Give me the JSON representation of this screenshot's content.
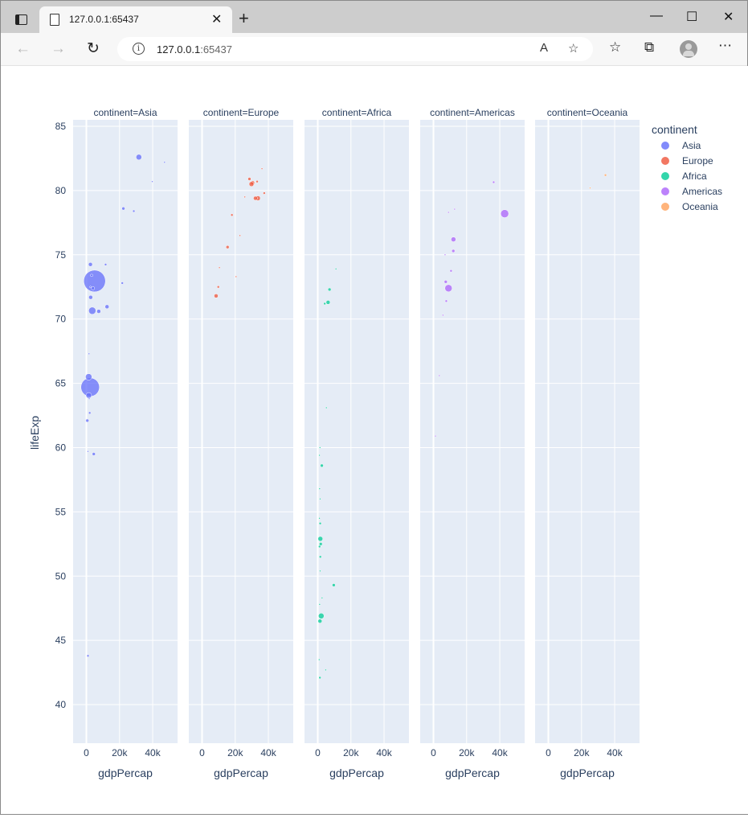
{
  "browser": {
    "tab_title": "127.0.0.1:65437",
    "url_host": "127.0.0.1",
    "url_port": ":65437",
    "tab_close_icon": "close-icon",
    "new_tab_icon": "plus-icon"
  },
  "chart_data": {
    "type": "scatter",
    "facet_by": "continent",
    "facets": [
      "continent=Asia",
      "continent=Europe",
      "continent=Africa",
      "continent=Americas",
      "continent=Oceania"
    ],
    "xlabel": "gdpPercap",
    "ylabel": "lifeExp",
    "xlim": [
      -8000,
      55000
    ],
    "ylim": [
      37,
      85.5
    ],
    "xticks": [
      0,
      20000,
      40000
    ],
    "xtick_labels": [
      "0",
      "20k",
      "40k"
    ],
    "yticks": [
      40,
      45,
      50,
      55,
      60,
      65,
      70,
      75,
      80,
      85
    ],
    "ytick_labels": [
      "40",
      "45",
      "50",
      "55",
      "60",
      "65",
      "70",
      "75",
      "80",
      "85"
    ],
    "legend_title": "continent",
    "legend_position": "right",
    "grid": true,
    "size_encoded": true,
    "colors": {
      "Asia": "#636efa",
      "Europe": "#ef553b",
      "Africa": "#00cc96",
      "Americas": "#ab63fa",
      "Oceania": "#ffa15a",
      "plot_bg": "#e5ecf6"
    },
    "series": [
      {
        "name": "Asia",
        "points": [
          [
            31656,
            82.6,
            7
          ],
          [
            47143,
            82.2,
            2
          ],
          [
            39725,
            80.7,
            2
          ],
          [
            22316,
            78.6,
            4
          ],
          [
            28604,
            78.4,
            3
          ],
          [
            4959,
            72.96,
            27
          ],
          [
            2452,
            74.25,
            5
          ],
          [
            11606,
            74.24,
            3
          ],
          [
            3190,
            73.4,
            3
          ],
          [
            3970,
            72.4,
            4
          ],
          [
            21655,
            72.8,
            3
          ],
          [
            2442,
            72.5,
            2
          ],
          [
            3548,
            70.65,
            9
          ],
          [
            7458,
            70.6,
            5
          ],
          [
            12452,
            70.96,
            5
          ],
          [
            2605,
            71.69,
            5
          ],
          [
            2281,
            64.7,
            23
          ],
          [
            1391,
            65.5,
            8
          ],
          [
            1441,
            64.06,
            7
          ],
          [
            1714,
            63.8,
            2
          ],
          [
            1593,
            67.3,
            2
          ],
          [
            580,
            62.1,
            4
          ],
          [
            2012,
            62.7,
            3
          ],
          [
            944,
            59.7,
            2
          ],
          [
            4471,
            59.5,
            4
          ],
          [
            975,
            43.8,
            3
          ]
        ]
      },
      {
        "name": "Europe",
        "points": [
          [
            28569,
            80.9,
            4
          ],
          [
            33207,
            80.7,
            3
          ],
          [
            30470,
            80.6,
            5
          ],
          [
            36126,
            81.7,
            2
          ],
          [
            29796,
            80.5,
            6
          ],
          [
            33693,
            79.4,
            6
          ],
          [
            32170,
            79.4,
            5
          ],
          [
            37506,
            79.8,
            3
          ],
          [
            25768,
            79.5,
            2
          ],
          [
            18008,
            78.1,
            3
          ],
          [
            15390,
            75.6,
            4
          ],
          [
            22833,
            76.5,
            2
          ],
          [
            20510,
            73.3,
            2
          ],
          [
            9787,
            72.5,
            3
          ],
          [
            10461,
            74.0,
            2
          ],
          [
            8458,
            71.8,
            5
          ]
        ]
      },
      {
        "name": "Africa",
        "points": [
          [
            7092,
            72.3,
            4
          ],
          [
            6224,
            71.3,
            5
          ],
          [
            4185,
            71.2,
            3
          ],
          [
            10957,
            73.9,
            2
          ],
          [
            5186,
            63.1,
            2
          ],
          [
            1328,
            60.0,
            2
          ],
          [
            1000,
            59.4,
            2
          ],
          [
            2452,
            58.6,
            4
          ],
          [
            1107,
            56.8,
            2
          ],
          [
            1441,
            56.0,
            2
          ],
          [
            1000,
            54.5,
            2
          ],
          [
            1463,
            54.1,
            3
          ],
          [
            1570,
            52.9,
            6
          ],
          [
            1803,
            52.5,
            4
          ],
          [
            1100,
            52.3,
            3
          ],
          [
            1545,
            51.5,
            3
          ],
          [
            1441,
            50.4,
            2
          ],
          [
            9645,
            49.3,
            4
          ],
          [
            2602,
            48.3,
            2
          ],
          [
            1131,
            47.8,
            2
          ],
          [
            2082,
            46.9,
            7
          ],
          [
            1327,
            46.5,
            5
          ],
          [
            4797,
            42.7,
            2
          ],
          [
            863,
            43.5,
            2
          ],
          [
            1270,
            42.1,
            3
          ]
        ]
      },
      {
        "name": "Americas",
        "points": [
          [
            36319,
            80.65,
            3
          ],
          [
            42952,
            78.2,
            10
          ],
          [
            12779,
            78.55,
            2
          ],
          [
            9065,
            78.3,
            2
          ],
          [
            12057,
            76.2,
            6
          ],
          [
            11978,
            75.3,
            4
          ],
          [
            7006,
            75.0,
            2
          ],
          [
            10611,
            73.75,
            3
          ],
          [
            9066,
            72.4,
            9
          ],
          [
            7408,
            72.9,
            4
          ],
          [
            7722,
            71.4,
            3
          ],
          [
            5728,
            70.3,
            2
          ],
          [
            3548,
            65.6,
            2
          ],
          [
            1201,
            60.9,
            2
          ]
        ]
      },
      {
        "name": "Oceania",
        "points": [
          [
            34435,
            81.2,
            3
          ],
          [
            25185,
            80.2,
            2
          ]
        ]
      }
    ]
  }
}
